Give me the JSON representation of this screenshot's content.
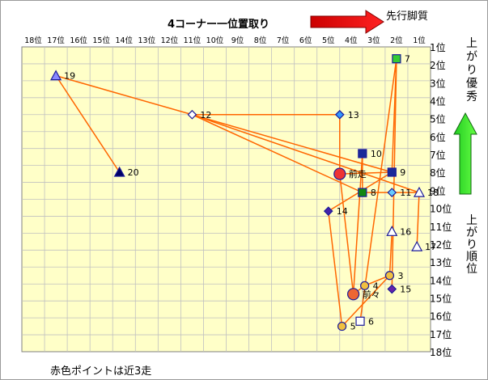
{
  "chart_data": {
    "type": "scatter",
    "title": "4コーナー一位置取り",
    "x_axis": {
      "label": "先行脚質",
      "min": 1,
      "max": 18,
      "reversed": true,
      "ticks": [
        "18位",
        "17位",
        "16位",
        "15位",
        "14位",
        "13位",
        "12位",
        "11位",
        "10位",
        "9位",
        "8位",
        "7位",
        "6位",
        "5位",
        "4位",
        "3位",
        "2位",
        "1位"
      ]
    },
    "y_axis": {
      "label_top": "上がり優秀",
      "label_bottom": "上がり順位",
      "min": 1,
      "max": 18,
      "ticks": [
        "1位",
        "2位",
        "3位",
        "4位",
        "5位",
        "6位",
        "7位",
        "8位",
        "9位",
        "10位",
        "11位",
        "12位",
        "13位",
        "14位",
        "15位",
        "16位",
        "17位",
        "18位"
      ]
    },
    "grid": true,
    "background_color": "#ffffc8",
    "grid_color": "#c0c0c0",
    "line_color": "#ff6600",
    "note": "赤色ポイントは近3走",
    "points": [
      {
        "label": "7",
        "x": 2.0,
        "y": 1.2,
        "shape": "square",
        "fill": "#33cc33"
      },
      {
        "label": "19",
        "x": 17.0,
        "y": 2.2,
        "shape": "triangle",
        "fill": "#8888ff"
      },
      {
        "label": "12",
        "x": 11.0,
        "y": 4.5,
        "shape": "diamond",
        "fill": "#ffffff"
      },
      {
        "label": "13",
        "x": 4.5,
        "y": 4.5,
        "shape": "diamond",
        "fill": "#3399ff"
      },
      {
        "label": "10",
        "x": 3.5,
        "y": 6.8,
        "shape": "square",
        "fill": "#1a2a99"
      },
      {
        "label": "9",
        "x": 2.2,
        "y": 7.9,
        "shape": "square",
        "fill": "#1a2a99"
      },
      {
        "label": "20",
        "x": 14.2,
        "y": 7.9,
        "shape": "triangle",
        "fill": "#000066"
      },
      {
        "label": "前走",
        "x": 4.5,
        "y": 8.0,
        "shape": "circle",
        "fill": "#ee3333",
        "big": true
      },
      {
        "label": "8",
        "x": 3.5,
        "y": 9.1,
        "shape": "square",
        "fill": "#118811"
      },
      {
        "label": "11",
        "x": 2.2,
        "y": 9.1,
        "shape": "diamond",
        "fill": "#66ccff"
      },
      {
        "label": "18",
        "x": 1.0,
        "y": 9.1,
        "shape": "triangle",
        "fill": "#ffffff"
      },
      {
        "label": "14",
        "x": 5.0,
        "y": 10.2,
        "shape": "diamond",
        "fill": "#4422aa"
      },
      {
        "label": "16",
        "x": 2.2,
        "y": 11.4,
        "shape": "triangle",
        "fill": "#ffffff"
      },
      {
        "label": "17",
        "x": 1.1,
        "y": 12.3,
        "shape": "triangle",
        "fill": "#ffffff"
      },
      {
        "label": "3",
        "x": 2.3,
        "y": 14.0,
        "shape": "circle",
        "fill": "#f0c040"
      },
      {
        "label": "4",
        "x": 3.4,
        "y": 14.6,
        "shape": "circle",
        "fill": "#f0c040"
      },
      {
        "label": "15",
        "x": 2.2,
        "y": 14.8,
        "shape": "diamond",
        "fill": "#6622aa"
      },
      {
        "label": "前々",
        "x": 3.9,
        "y": 15.1,
        "shape": "circle",
        "fill": "#ee6633",
        "big": true
      },
      {
        "label": "6",
        "x": 3.6,
        "y": 16.7,
        "shape": "square",
        "fill": "#ffffff"
      },
      {
        "label": "5",
        "x": 4.4,
        "y": 17.0,
        "shape": "circle",
        "fill": "#f0c040"
      }
    ],
    "lines": [
      [
        "19",
        "20"
      ],
      [
        "19",
        "12"
      ],
      [
        "12",
        "13"
      ],
      [
        "12",
        "8"
      ],
      [
        "12",
        "9"
      ],
      [
        "12",
        "18"
      ],
      [
        "13",
        "前走"
      ],
      [
        "7",
        "9"
      ],
      [
        "7",
        "15"
      ],
      [
        "7",
        "6"
      ],
      [
        "10",
        "8"
      ],
      [
        "10",
        "前々"
      ],
      [
        "9",
        "前走"
      ],
      [
        "9",
        "14"
      ],
      [
        "11",
        "8"
      ],
      [
        "11",
        "18"
      ],
      [
        "18",
        "17"
      ],
      [
        "14",
        "5"
      ],
      [
        "前走",
        "前々"
      ],
      [
        "前々",
        "4"
      ],
      [
        "4",
        "3"
      ],
      [
        "3",
        "16"
      ],
      [
        "5",
        "3"
      ]
    ]
  }
}
